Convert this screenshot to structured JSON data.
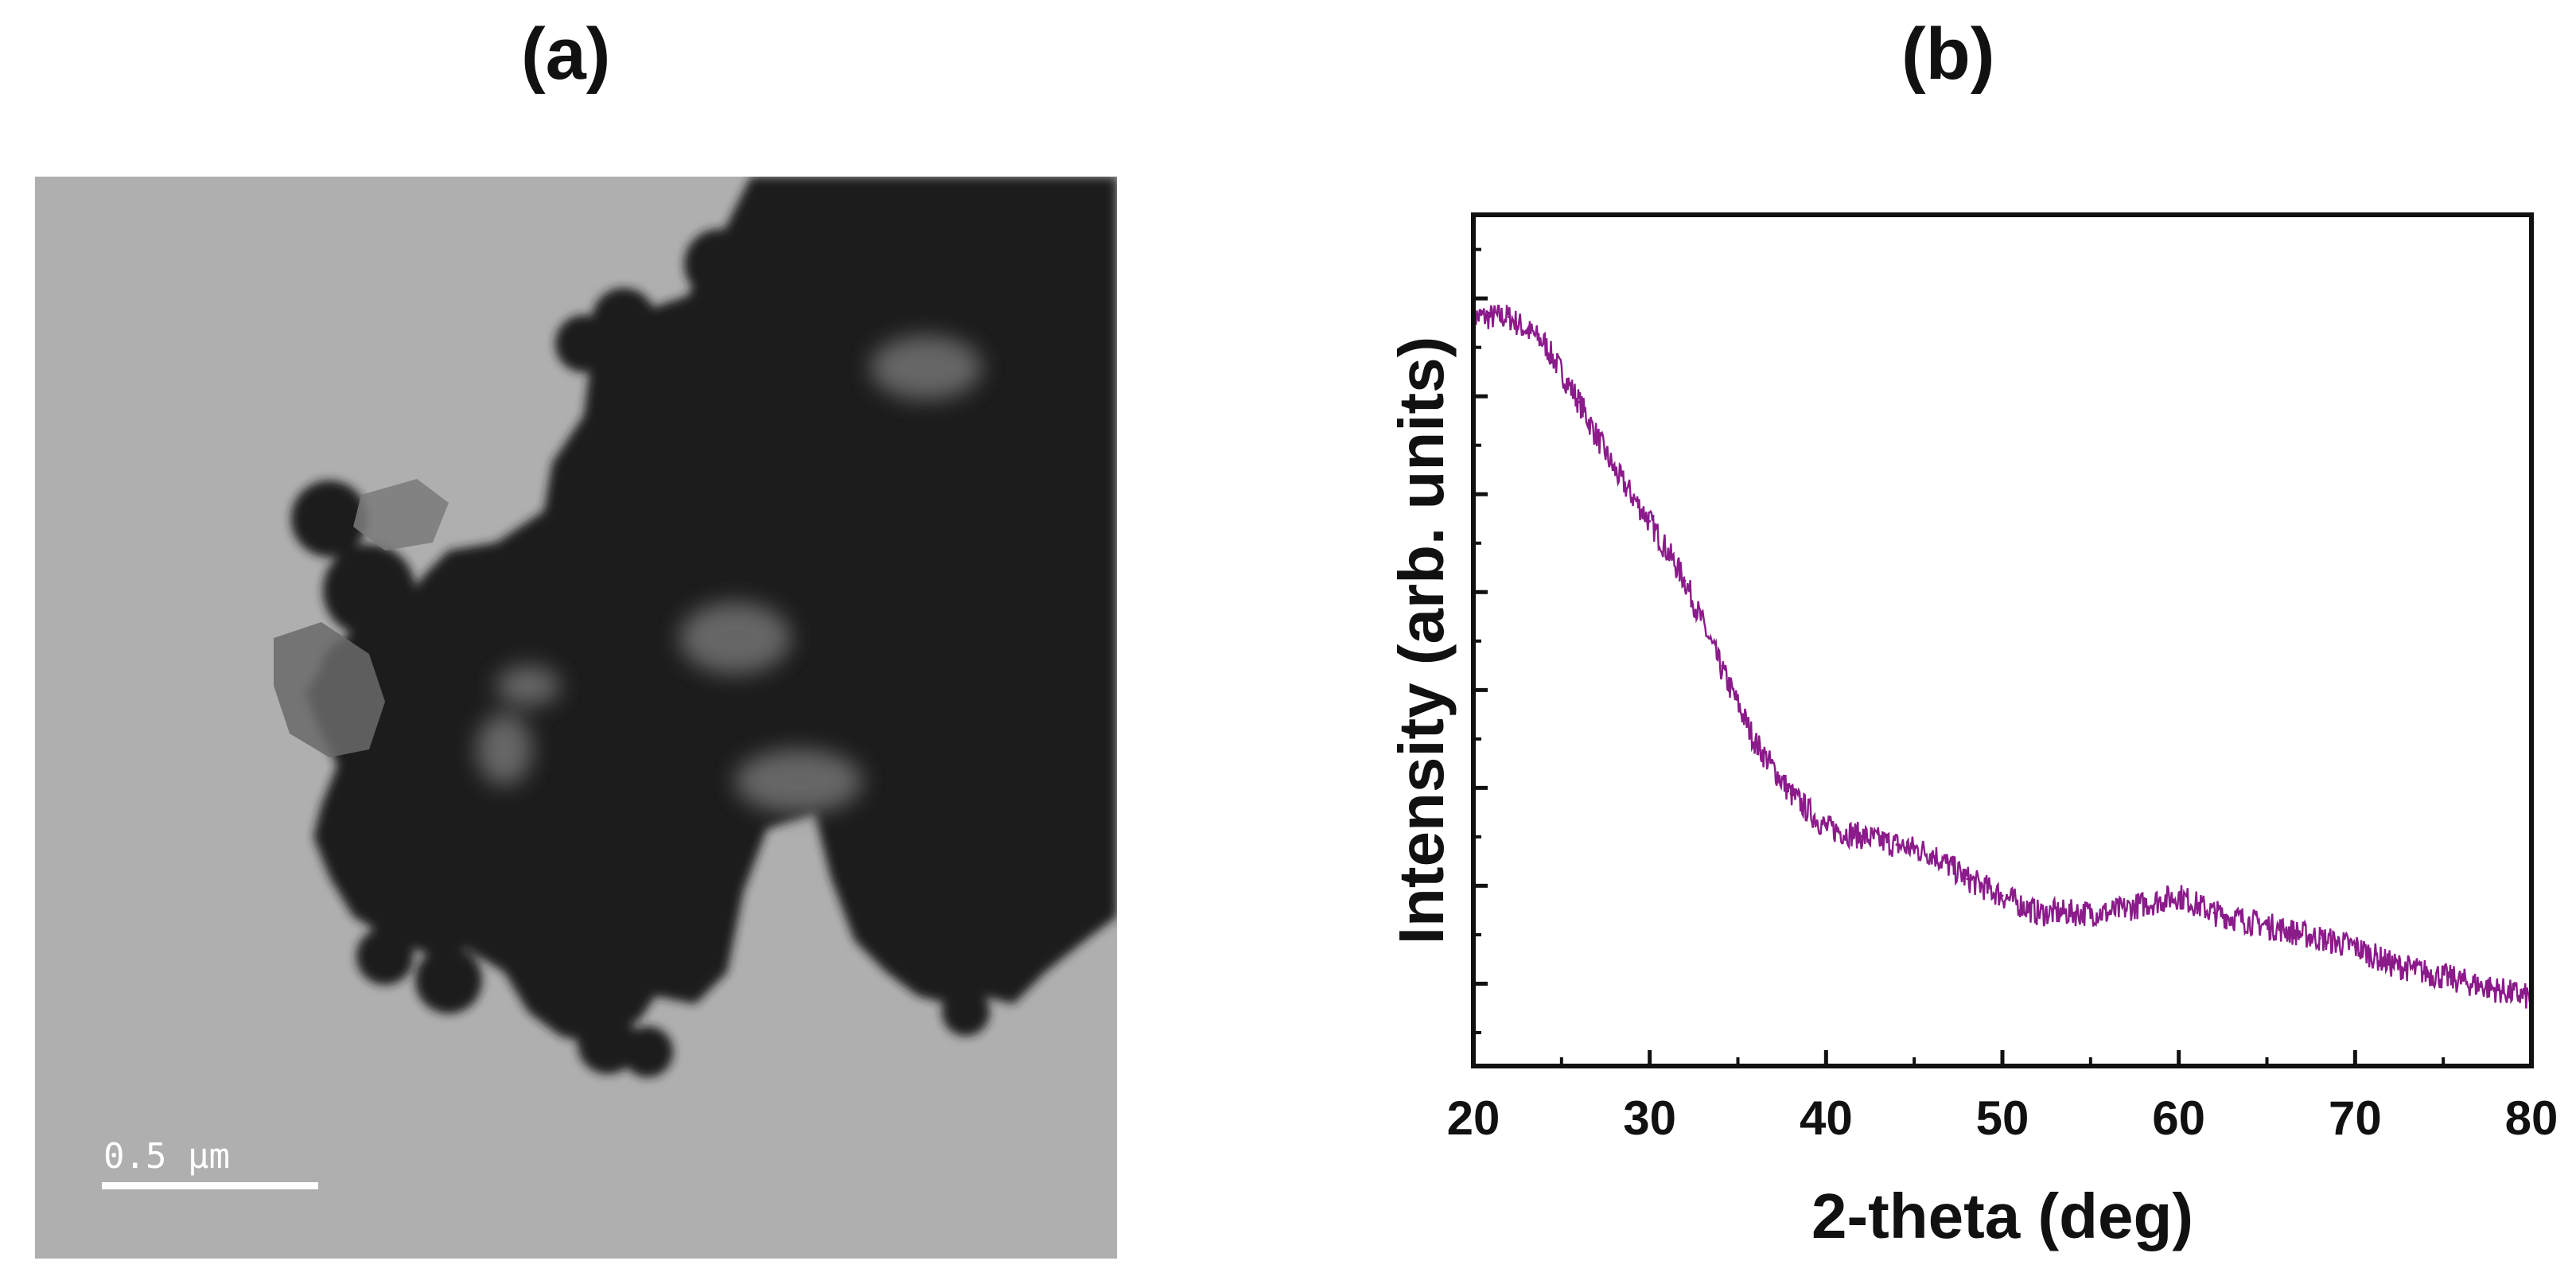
{
  "panels": {
    "a_label": "(a)",
    "b_label": "(b)"
  },
  "tem": {
    "scale_bar_label": "0.5 μm"
  },
  "colors": {
    "series": "#8B1A8B",
    "tem_background": "#a9a9a9",
    "particle": "#1c1c1c"
  },
  "chart_data": {
    "type": "line",
    "xlabel": "2-theta (deg)",
    "ylabel": "Intensity (arb. units)",
    "xlim": [
      20,
      80
    ],
    "xticks": [
      20,
      30,
      40,
      50,
      60,
      70,
      80
    ],
    "y_tick_labels_shown": false,
    "ylim": [
      0,
      100
    ],
    "grid": false,
    "legend": "none",
    "series": [
      {
        "x": [
          20,
          22,
          24,
          26,
          28,
          30,
          32,
          34,
          36,
          38,
          40,
          42,
          44,
          46,
          48,
          50,
          52,
          54,
          56,
          58,
          60,
          62,
          64,
          66,
          68,
          70,
          72,
          74,
          76,
          78,
          80
        ],
        "values": [
          88,
          88,
          85,
          78,
          70,
          64,
          57,
          47,
          38,
          32,
          28,
          27,
          26,
          25,
          22,
          20,
          18,
          18,
          18,
          19,
          20,
          18,
          17,
          16,
          15,
          14,
          12,
          11,
          10,
          9,
          8
        ]
      }
    ]
  }
}
